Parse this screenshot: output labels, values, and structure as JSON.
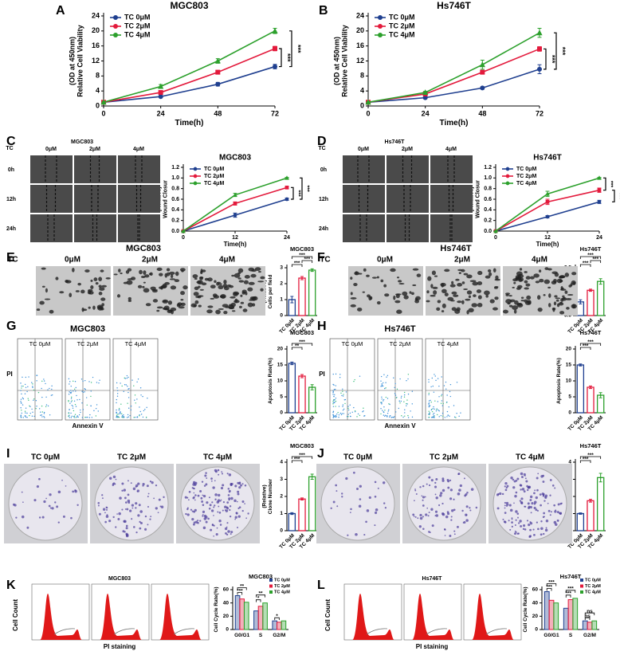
{
  "chart_data": [
    {
      "type": "line",
      "panel": "A",
      "title": "MGC803",
      "xlabel": "Time(h)",
      "ylabel": [
        "Relative Cell Viability",
        "(OD at 450nm)"
      ],
      "x": [
        0,
        24,
        48,
        72
      ],
      "xlim": [
        0,
        72
      ],
      "xticks": [
        0,
        24,
        48,
        72
      ],
      "ylim": [
        0,
        24
      ],
      "yticks": [
        0,
        4,
        8,
        12,
        16,
        20,
        24
      ],
      "legend": "upper left",
      "series": [
        {
          "name": "TC 0μM",
          "color": "#1f3f8f",
          "values": [
            1,
            2.5,
            5.8,
            10.5
          ],
          "errors": [
            0.1,
            0.2,
            0.5,
            0.6
          ]
        },
        {
          "name": "TC 2μM",
          "color": "#e31a3c",
          "values": [
            1,
            3.6,
            9,
            15.3
          ],
          "errors": [
            0.1,
            0.3,
            0.5,
            0.6
          ]
        },
        {
          "name": "TC 4μM",
          "color": "#2ca02c",
          "values": [
            1,
            5.2,
            12,
            20
          ],
          "errors": [
            0.1,
            0.5,
            0.6,
            0.7
          ]
        }
      ],
      "annotations": [
        "***",
        "***"
      ]
    },
    {
      "type": "line",
      "panel": "B",
      "title": "Hs746T",
      "xlabel": "Time(h)",
      "ylabel": [
        "Relative Cell Viability",
        "(OD at 450nm)"
      ],
      "x": [
        0,
        24,
        48,
        72
      ],
      "xlim": [
        0,
        72
      ],
      "xticks": [
        0,
        24,
        48,
        72
      ],
      "ylim": [
        0,
        24
      ],
      "yticks": [
        0,
        4,
        8,
        12,
        16,
        20,
        24
      ],
      "legend": "upper left",
      "series": [
        {
          "name": "TC 0μM",
          "color": "#1f3f8f",
          "values": [
            1,
            2.2,
            4.8,
            9.8
          ],
          "errors": [
            0.1,
            0.2,
            0.3,
            1.2
          ]
        },
        {
          "name": "TC 2μM",
          "color": "#e31a3c",
          "values": [
            1,
            3.2,
            9,
            15.2
          ],
          "errors": [
            0.1,
            0.3,
            0.4,
            0.6
          ]
        },
        {
          "name": "TC 4μM",
          "color": "#2ca02c",
          "values": [
            1,
            3.6,
            11,
            19.5
          ],
          "errors": [
            0.1,
            0.3,
            1.2,
            1.2
          ]
        }
      ],
      "annotations": [
        "***",
        "***"
      ]
    },
    {
      "type": "line",
      "panel": "C",
      "title": "MGC803",
      "xlabel": "Time(h)",
      "ylabel": [
        "Wound Closur",
        "(Relative)"
      ],
      "x": [
        0,
        12,
        24
      ],
      "xlim": [
        0,
        24
      ],
      "xticks": [
        0,
        12,
        24
      ],
      "ylim": [
        0,
        1.2
      ],
      "yticks": [
        {
          "value": 0,
          "label": "0.0"
        },
        {
          "value": 0.2,
          "label": "0.2"
        },
        {
          "value": 0.4,
          "label": "0.4"
        },
        {
          "value": 0.6,
          "label": "0.6"
        },
        {
          "value": 0.8,
          "label": "0.8"
        },
        {
          "value": 1,
          "label": "1.0"
        },
        {
          "value": 1.2,
          "label": "1.2"
        }
      ],
      "legend": "upper left",
      "series": [
        {
          "name": "TC 0μM",
          "color": "#1f3f8f",
          "values": [
            0,
            0.3,
            0.6
          ],
          "errors": [
            0,
            0.04,
            0.02
          ]
        },
        {
          "name": "TC 2μM",
          "color": "#e31a3c",
          "values": [
            0,
            0.52,
            0.82
          ],
          "errors": [
            0,
            0.03,
            0.02
          ]
        },
        {
          "name": "TC 4μM",
          "color": "#2ca02c",
          "values": [
            0,
            0.68,
            1.0
          ],
          "errors": [
            0,
            0.03,
            0.01
          ]
        }
      ],
      "annotations": [
        "***",
        "***"
      ]
    },
    {
      "type": "line",
      "panel": "D",
      "title": "Hs746T",
      "xlabel": "Time(h)",
      "ylabel": [
        "Wound Closur",
        "(Relative)"
      ],
      "x": [
        0,
        12,
        24
      ],
      "xlim": [
        0,
        24
      ],
      "xticks": [
        0,
        12,
        24
      ],
      "ylim": [
        0,
        1.2
      ],
      "yticks": [
        {
          "value": 0,
          "label": "0.0"
        },
        {
          "value": 0.2,
          "label": "0.2"
        },
        {
          "value": 0.4,
          "label": "0.4"
        },
        {
          "value": 0.6,
          "label": "0.6"
        },
        {
          "value": 0.8,
          "label": "0.8"
        },
        {
          "value": 1,
          "label": "1.0"
        },
        {
          "value": 1.2,
          "label": "1.2"
        }
      ],
      "legend": "upper left",
      "series": [
        {
          "name": "TC 0μM",
          "color": "#1f3f8f",
          "values": [
            0,
            0.27,
            0.55
          ],
          "errors": [
            0,
            0.02,
            0.03
          ]
        },
        {
          "name": "TC 2μM",
          "color": "#e31a3c",
          "values": [
            0,
            0.55,
            0.77
          ],
          "errors": [
            0,
            0.05,
            0.04
          ]
        },
        {
          "name": "TC 4μM",
          "color": "#2ca02c",
          "values": [
            0,
            0.7,
            1.0
          ],
          "errors": [
            0,
            0.05,
            0.01
          ]
        }
      ],
      "annotations": [
        "***",
        "***",
        "***"
      ]
    },
    {
      "type": "bar",
      "panel": "E",
      "title": "MGC803",
      "ylabel": [
        "Cells per field",
        "(Relative)"
      ],
      "categories": [
        "TC 0μM",
        "TC 2μM",
        "TC 4μM"
      ],
      "values": [
        1,
        2.35,
        2.85
      ],
      "errors": [
        0.2,
        0.1,
        0.08
      ],
      "colors": [
        "#1f3f8f",
        "#e31a3c",
        "#2ca02c"
      ],
      "ylim": [
        0,
        3
      ],
      "yticks": [
        0,
        1,
        2,
        3
      ],
      "annotations": [
        "***",
        "***",
        "***"
      ]
    },
    {
      "type": "bar",
      "panel": "F",
      "title": "Hs746T",
      "ylabel": [
        "Cells per field",
        "(Relative)"
      ],
      "categories": [
        "TC 0μM",
        "TC 2μM",
        "TC 4μM"
      ],
      "values": [
        1,
        1.85,
        2.5
      ],
      "errors": [
        0.15,
        0.08,
        0.2
      ],
      "colors": [
        "#1f3f8f",
        "#e31a3c",
        "#2ca02c"
      ],
      "ylim": [
        0,
        3.5
      ],
      "yticks": [
        {
          "value": 0,
          "label": "0.0"
        },
        {
          "value": 0.5,
          "label": "0.5"
        },
        {
          "value": 1,
          "label": "1.0"
        },
        {
          "value": 1.5,
          "label": "1.5"
        },
        {
          "value": 2,
          "label": "2.0"
        },
        {
          "value": 2.5,
          "label": "2.5"
        },
        {
          "value": 3,
          "label": "3.0"
        },
        {
          "value": 3.5,
          "label": "3.5"
        }
      ],
      "annotations": [
        "***",
        "***",
        "***"
      ]
    },
    {
      "type": "bar",
      "panel": "G",
      "title": "MGC803",
      "ylabel": [
        "Apoptosis Rate(%)"
      ],
      "categories": [
        "TC 0μM",
        "TC 2μM",
        "TC 4μM"
      ],
      "values": [
        15.5,
        11.5,
        8
      ],
      "errors": [
        0.4,
        0.5,
        0.8
      ],
      "colors": [
        "#1f3f8f",
        "#e31a3c",
        "#2ca02c"
      ],
      "ylim": [
        0,
        20
      ],
      "yticks": [
        0,
        5,
        10,
        15,
        20
      ],
      "annotations": [
        "**",
        "***"
      ]
    },
    {
      "type": "bar",
      "panel": "H",
      "title": "Hs746T",
      "ylabel": [
        "Apoptosis Rate(%)"
      ],
      "categories": [
        "TC 0μM",
        "TC 2μM",
        "TC 4μM"
      ],
      "values": [
        15,
        8,
        5.5
      ],
      "errors": [
        0.3,
        0.4,
        0.8
      ],
      "colors": [
        "#1f3f8f",
        "#e31a3c",
        "#2ca02c"
      ],
      "ylim": [
        0,
        20
      ],
      "yticks": [
        0,
        5,
        10,
        15,
        20
      ],
      "annotations": [
        "***",
        "***"
      ]
    },
    {
      "type": "bar",
      "panel": "I",
      "title": "MGC803",
      "ylabel": [
        "Clone Number",
        "(Relative)"
      ],
      "categories": [
        "TC 0μM",
        "TC 2μM",
        "TC 4μM"
      ],
      "values": [
        1,
        1.85,
        3.15
      ],
      "errors": [
        0.05,
        0.06,
        0.15
      ],
      "colors": [
        "#1f3f8f",
        "#e31a3c",
        "#2ca02c"
      ],
      "ylim": [
        0,
        4
      ],
      "yticks": [
        0,
        1,
        2,
        3,
        4
      ],
      "annotations": [
        "***",
        "***"
      ]
    },
    {
      "type": "bar",
      "panel": "J",
      "title": "Hs746T",
      "ylabel": [
        "Clone Number",
        "(Relative)"
      ],
      "categories": [
        "TC 0μM",
        "TC 2μM",
        "TC 4μM"
      ],
      "values": [
        1,
        1.75,
        3.1
      ],
      "errors": [
        0.04,
        0.08,
        0.25
      ],
      "colors": [
        "#1f3f8f",
        "#e31a3c",
        "#2ca02c"
      ],
      "ylim": [
        0,
        4
      ],
      "yticks": [
        0,
        1,
        2,
        3,
        4
      ],
      "annotations": [
        "***",
        "***"
      ]
    },
    {
      "type": "grouped_bar",
      "panel": "K",
      "title": "MGC803",
      "ylabel": [
        "Cell Cycle Rate(%)"
      ],
      "categories": [
        "G0/G1",
        "S",
        "G2/M"
      ],
      "ylim": [
        0,
        60
      ],
      "yticks": [
        0,
        20,
        40,
        60
      ],
      "legend": "upper right",
      "series": [
        {
          "name": "TC 0μM",
          "color": "#1f3f8f",
          "values": [
            51,
            28,
            13
          ]
        },
        {
          "name": "TC 2μM",
          "color": "#e31a3c",
          "values": [
            46,
            35,
            11
          ]
        },
        {
          "name": "TC 4μM",
          "color": "#2ca02c",
          "values": [
            41,
            40,
            13
          ]
        }
      ],
      "annotations": [
        [
          "***",
          "**"
        ],
        [
          "*",
          "**"
        ],
        [
          "*"
        ]
      ]
    },
    {
      "type": "grouped_bar",
      "panel": "L",
      "title": "Hs746T",
      "ylabel": [
        "Cell Cycle Rate(%)"
      ],
      "categories": [
        "G0/G1",
        "S",
        "G2/M"
      ],
      "ylim": [
        0,
        60
      ],
      "yticks": [
        0,
        20,
        40,
        60
      ],
      "legend": "upper right",
      "series": [
        {
          "name": "TC 0μM",
          "color": "#1f3f8f",
          "values": [
            57,
            32,
            13
          ]
        },
        {
          "name": "TC 2μM",
          "color": "#e31a3c",
          "values": [
            44,
            45,
            11
          ]
        },
        {
          "name": "TC 4μM",
          "color": "#2ca02c",
          "values": [
            40,
            47,
            13
          ]
        }
      ],
      "annotations": [
        [
          "***",
          "***"
        ],
        [
          "***",
          "***"
        ],
        [
          "ns",
          "ns"
        ]
      ]
    }
  ],
  "image_panels": [
    {
      "title": "MGC803",
      "row_header": "TC",
      "columns": [
        "0μM",
        "2μM",
        "4μM"
      ],
      "rows": [
        "0h",
        "12h",
        "24h"
      ]
    },
    {
      "title": "Hs746T",
      "row_header": "TC",
      "columns": [
        "0μM",
        "2μM",
        "4μM"
      ],
      "rows": [
        "0h",
        "12h",
        "24h"
      ]
    },
    {
      "title": "MGC803",
      "row_header": "TC",
      "columns": [
        "0μM",
        "2μM",
        "4μM"
      ]
    },
    {
      "title": "Hs746T",
      "row_header": "TC",
      "columns": [
        "0μM",
        "2μM",
        "4μM"
      ]
    },
    {
      "title": "MGC803",
      "columns": [
        "TC 0μM",
        "TC 2μM",
        "TC 4μM"
      ],
      "xlabel": "Annexin V",
      "ylabel": "PI"
    },
    {
      "title": "Hs746T",
      "columns": [
        "TC 0μM",
        "TC 2μM",
        "TC 4μM"
      ],
      "xlabel": "Annexin V",
      "ylabel": "PI"
    },
    {
      "title": "MGC803",
      "columns": [
        "TC 0μM",
        "TC 2μM",
        "TC 4μM"
      ]
    },
    {
      "title": "Hs746T",
      "columns": [
        "TC 0μM",
        "TC 2μM",
        "TC 4μM"
      ]
    },
    {
      "title": "MGC803",
      "columns": [
        "TC 0μM",
        "TC 2μM",
        "TC 4μM"
      ],
      "xlabel": "PI staining",
      "ylabel": "Cell Count"
    },
    {
      "title": "Hs746T",
      "columns": [
        "TC 0μM",
        "TC 2μM",
        "TC 4μM"
      ],
      "xlabel": "PI staining",
      "ylabel": "Cell Count"
    }
  ]
}
